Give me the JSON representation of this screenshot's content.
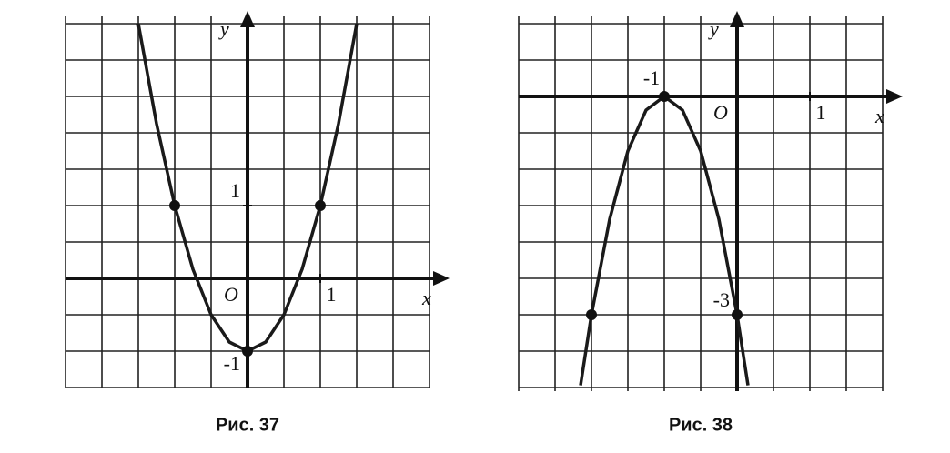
{
  "chart_data": [
    {
      "type": "line",
      "caption": "Рис. 37",
      "xlabel": "x",
      "ylabel": "y",
      "origin_label": "O",
      "xlim": [
        -2.5,
        2.5
      ],
      "ylim": [
        -1.5,
        3.6
      ],
      "xticks": [
        1
      ],
      "yticks": [
        -1,
        1
      ],
      "grid": true,
      "grid_step": 0.5,
      "series": [
        {
          "color": "#1a1a1a",
          "x": [
            -1.5,
            -1.25,
            -1,
            -0.75,
            -0.5,
            -0.25,
            0,
            0.25,
            0.5,
            0.75,
            1,
            1.25,
            1.5
          ],
          "values": [
            3.5,
            2.125,
            1,
            0.125,
            -0.5,
            -0.875,
            -1,
            -0.875,
            -0.5,
            0.125,
            1,
            2.125,
            3.5
          ]
        }
      ],
      "points": {
        "x": [
          -1,
          1,
          0
        ],
        "values": [
          1,
          1,
          -1
        ]
      }
    },
    {
      "type": "line",
      "caption": "Рис. 38",
      "xlabel": "x",
      "ylabel": "y",
      "origin_label": "O",
      "xlim": [
        -3,
        2
      ],
      "ylim": [
        -4.05,
        1.1
      ],
      "xticks": [
        -1,
        1
      ],
      "yticks": [
        -3
      ],
      "grid": true,
      "grid_step": 0.5,
      "series": [
        {
          "color": "#1a1a1a",
          "x": [
            -2.15,
            -2,
            -1.75,
            -1.5,
            -1.25,
            -1,
            -0.75,
            -0.5,
            -0.25,
            0,
            0.15
          ],
          "values": [
            -3.97,
            -3,
            -1.6875,
            -0.75,
            -0.1875,
            0,
            -0.1875,
            -0.75,
            -1.6875,
            -3,
            -3.97
          ]
        }
      ],
      "points": {
        "x": [
          -1,
          -2,
          0
        ],
        "values": [
          0,
          -3,
          -3
        ]
      }
    }
  ]
}
